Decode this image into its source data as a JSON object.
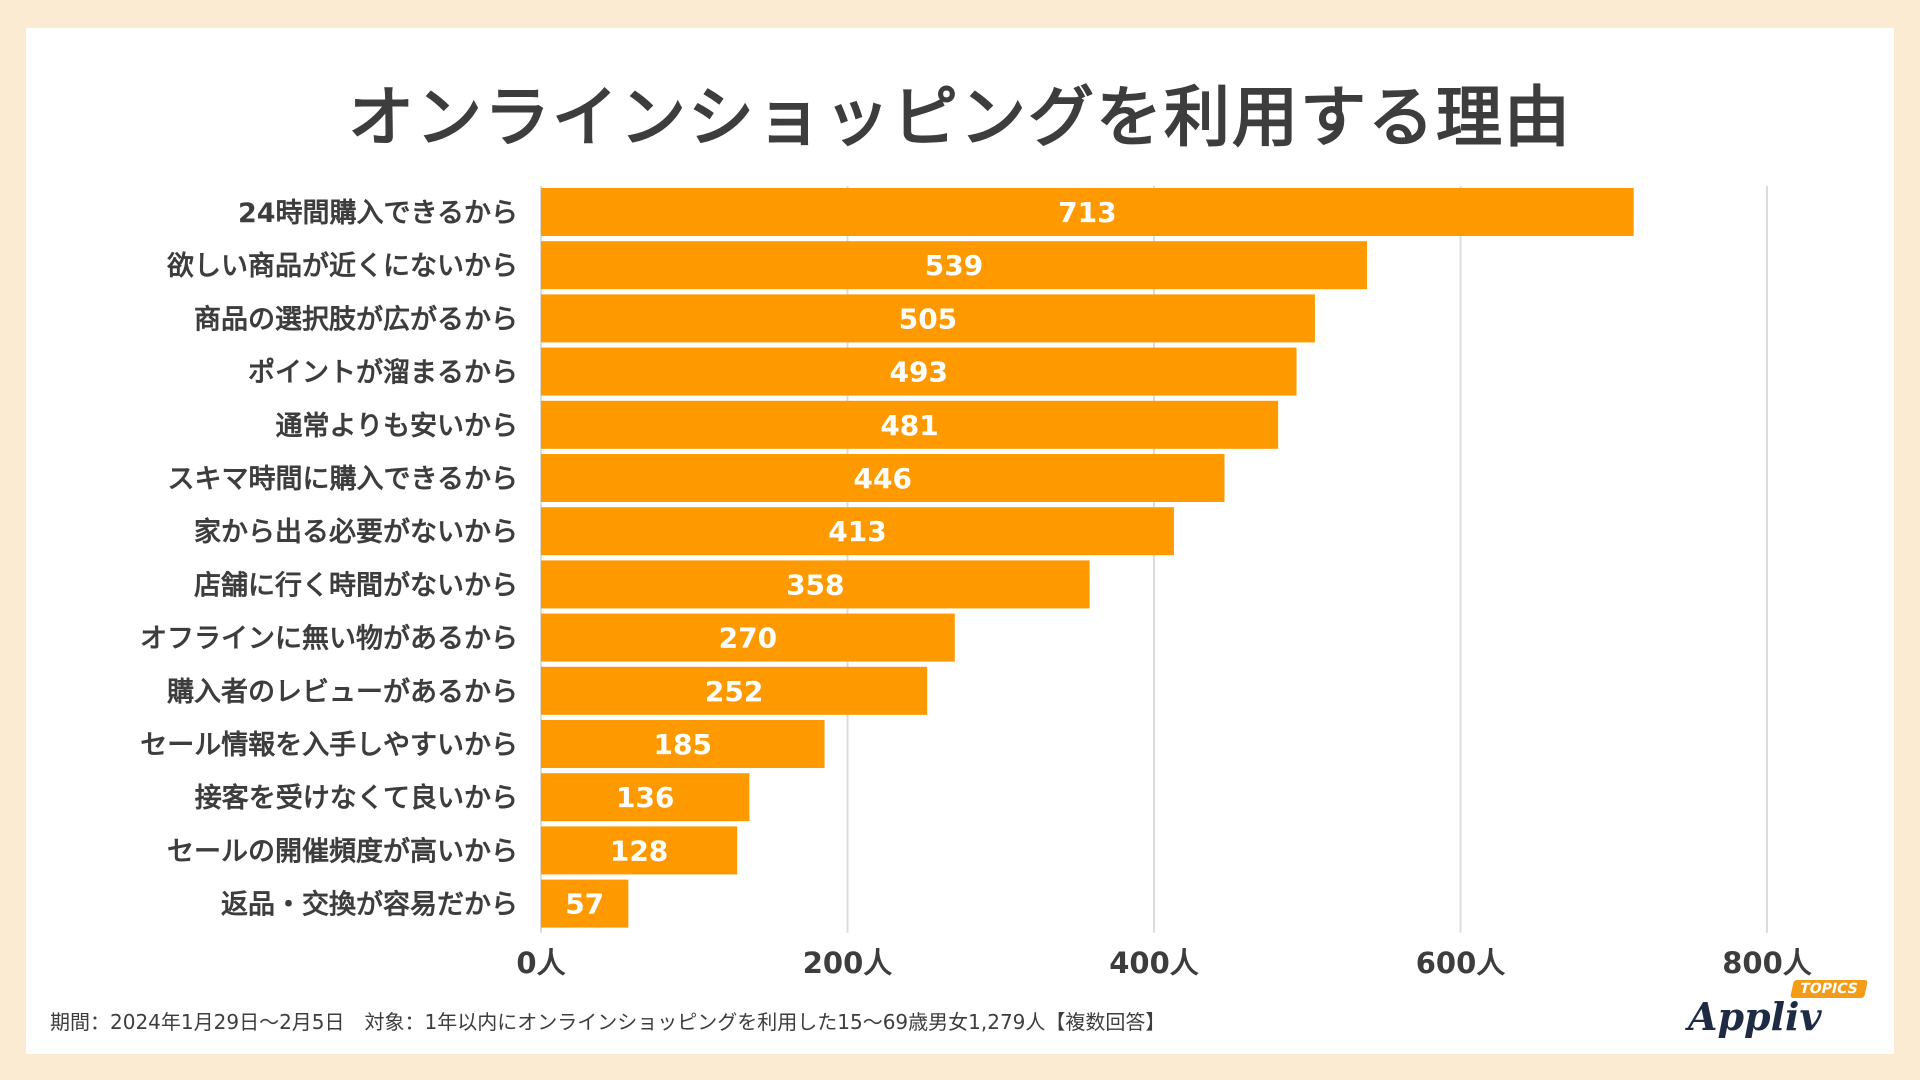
{
  "chart_data": {
    "type": "bar",
    "orientation": "horizontal",
    "title": "オンラインショッピングを利用する理由",
    "categories": [
      "24時間購入できるから",
      "欲しい商品が近くにないから",
      "商品の選択肢が広がるから",
      "ポイントが溜まるから",
      "通常よりも安いから",
      "スキマ時間に購入できるから",
      "家から出る必要がないから",
      "店舗に行く時間がないから",
      "オフラインに無い物があるから",
      "購入者のレビューがあるから",
      "セール情報を入手しやすいから",
      "接客を受けなくて良いから",
      "セールの開催頻度が高いから",
      "返品・交換が容易だから"
    ],
    "values": [
      713,
      539,
      505,
      493,
      481,
      446,
      413,
      358,
      270,
      252,
      185,
      136,
      128,
      57
    ],
    "xlim": [
      0,
      800
    ],
    "xticks": [
      0,
      200,
      400,
      600,
      800
    ],
    "xtick_labels": [
      "0人",
      "200人",
      "400人",
      "600人",
      "800人"
    ],
    "grid": true,
    "bar_color": "#FF9900"
  },
  "footnote": "期間：2024年1月29日～2月5日　対象：1年以内にオンラインショッピングを利用した15～69歳男女1,279人【複数回答】",
  "logo": {
    "name": "Appliv",
    "badge": "TOPICS"
  },
  "colors": {
    "background": "#FCEBD3",
    "bar": "#FF9900",
    "text": "#3d3d3d"
  }
}
